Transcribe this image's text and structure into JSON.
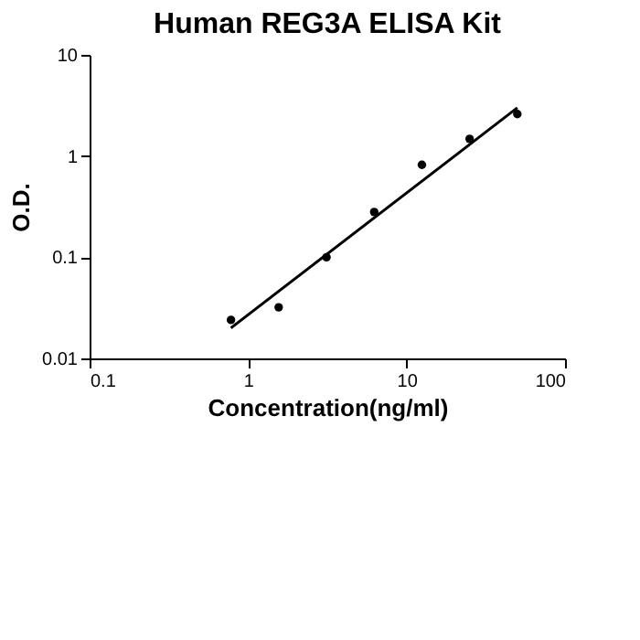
{
  "chart_data": {
    "type": "scatter",
    "title": "Human REG3A ELISA Kit",
    "xlabel": "Concentration(ng/ml)",
    "ylabel": "O.D.",
    "log": "xy",
    "xlim": [
      0.1,
      100
    ],
    "ylim": [
      0.01,
      10
    ],
    "xticks": [
      0.1,
      1,
      10,
      100
    ],
    "yticks": [
      0.01,
      0.1,
      1,
      10
    ],
    "grid": false,
    "marker": "circle",
    "series": [
      {
        "color": "#000000",
        "x": [
          0.78,
          1.56,
          3.125,
          6.25,
          12.5,
          25,
          50
        ],
        "values": [
          0.024,
          0.032,
          0.1,
          0.28,
          0.82,
          1.48,
          2.6
        ]
      },
      {
        "type": "line",
        "color": "#000000",
        "x": [
          0.78,
          50
        ],
        "values": [
          0.02,
          3.0
        ],
        "line_style": "solid",
        "marker": "none"
      }
    ]
  }
}
